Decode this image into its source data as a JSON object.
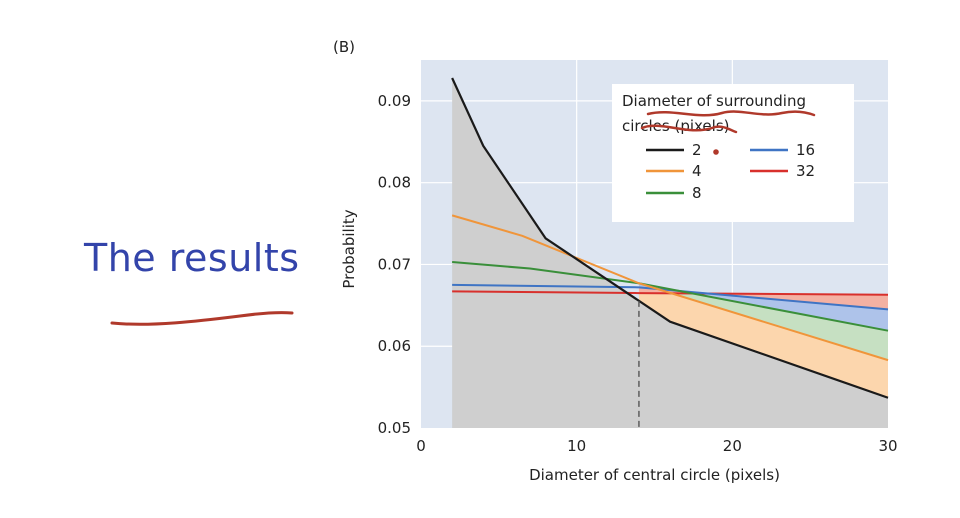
{
  "slide": {
    "title": "The results"
  },
  "chart_data": {
    "type": "line",
    "panel_label": "(B)",
    "xlabel": "Diameter of central circle (pixels)",
    "ylabel": "Probability",
    "xlim": [
      0,
      30
    ],
    "ylim": [
      0.05,
      0.095
    ],
    "xticks": [
      "0",
      "10",
      "20",
      "30"
    ],
    "yticks": [
      "0.05",
      "0.06",
      "0.07",
      "0.08",
      "0.09"
    ],
    "grid": true,
    "background_color": "#dde5f1",
    "legend": {
      "title": "Diameter of surrounding circles (pixels)",
      "placement": "top-right"
    },
    "crossover_x": 14,
    "series": [
      {
        "name": "2",
        "color": "#1a1a1a",
        "x": [
          2,
          4,
          8,
          16,
          30
        ],
        "y": [
          0.0928,
          0.0845,
          0.0732,
          0.063,
          0.0537
        ]
      },
      {
        "name": "4",
        "color": "#f0953a",
        "x": [
          2,
          6.5,
          14,
          30
        ],
        "y": [
          0.076,
          0.0735,
          0.0677,
          0.0583
        ]
      },
      {
        "name": "8",
        "color": "#3a8f3a",
        "x": [
          2,
          7,
          14,
          30
        ],
        "y": [
          0.0703,
          0.0695,
          0.0677,
          0.0619
        ]
      },
      {
        "name": "16",
        "color": "#3f74c4",
        "x": [
          2,
          14,
          30
        ],
        "y": [
          0.0675,
          0.0672,
          0.0645
        ]
      },
      {
        "name": "32",
        "color": "#d8302c",
        "x": [
          2,
          14,
          30
        ],
        "y": [
          0.0667,
          0.0665,
          0.0663
        ]
      }
    ],
    "fills": {
      "below_2": "#cfcfcf",
      "band_2_4": "#fcd6ad",
      "band_4_8": "#c6e0c2",
      "band_8_16": "#aec3ea",
      "band_16_32": "#f4b1a3"
    },
    "annotation_ink_color": "#b0392b"
  }
}
